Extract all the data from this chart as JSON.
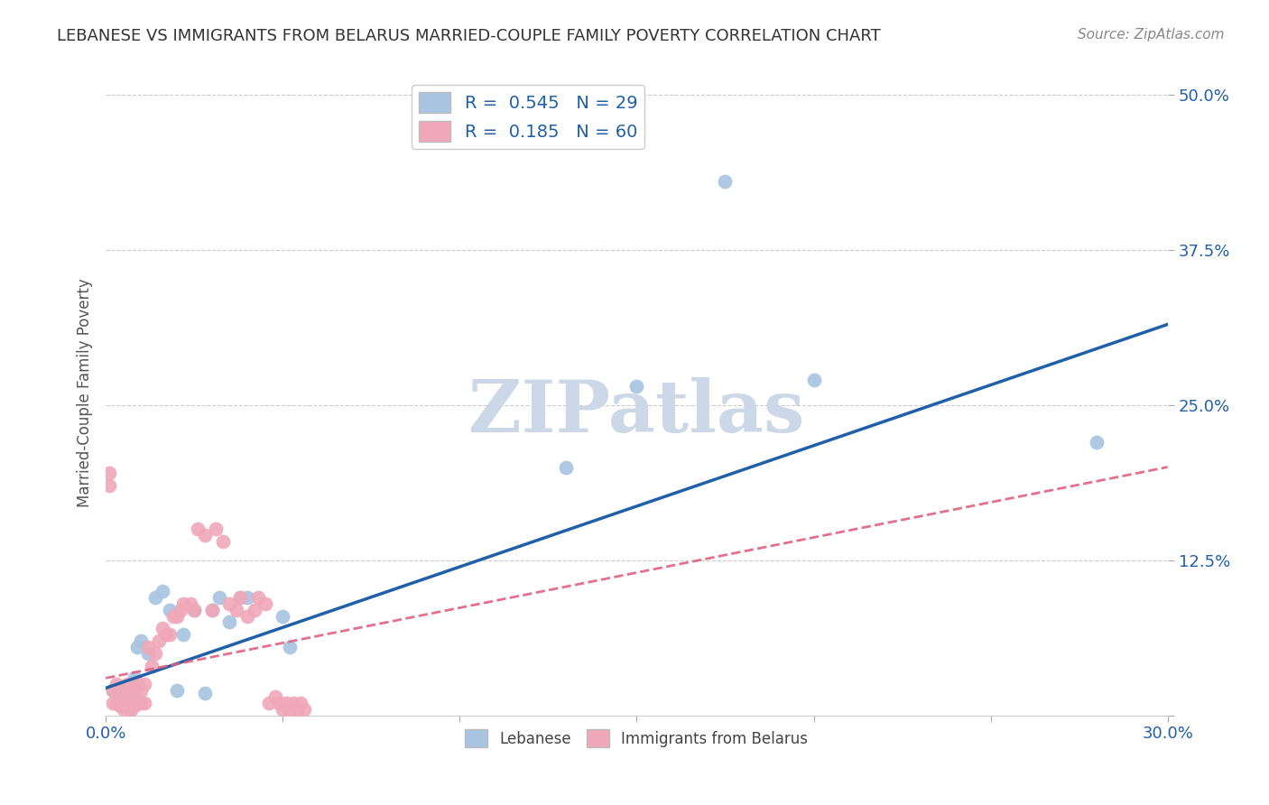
{
  "title": "LEBANESE VS IMMIGRANTS FROM BELARUS MARRIED-COUPLE FAMILY POVERTY CORRELATION CHART",
  "source": "Source: ZipAtlas.com",
  "ylabel": "Married-Couple Family Poverty",
  "xmin": 0.0,
  "xmax": 0.3,
  "ymin": 0.0,
  "ymax": 0.52,
  "xticks": [
    0.0,
    0.05,
    0.1,
    0.15,
    0.2,
    0.25,
    0.3
  ],
  "xticklabels": [
    "0.0%",
    "",
    "",
    "",
    "",
    "",
    "30.0%"
  ],
  "yticks": [
    0.0,
    0.125,
    0.25,
    0.375,
    0.5
  ],
  "yticklabels": [
    "",
    "12.5%",
    "25.0%",
    "37.5%",
    "50.0%"
  ],
  "blue_R": 0.545,
  "blue_N": 29,
  "pink_R": 0.185,
  "pink_N": 60,
  "blue_color": "#a8c4e0",
  "blue_line_color": "#2060a8",
  "pink_color": "#f0a8b8",
  "pink_line_color": "#e06080",
  "watermark": "ZIPatlas",
  "watermark_color": "#ccd8e8",
  "blue_line_x": [
    0.0,
    0.3
  ],
  "blue_line_y": [
    0.022,
    0.315
  ],
  "pink_line_x": [
    0.0,
    0.3
  ],
  "pink_line_y": [
    0.03,
    0.2
  ],
  "blue_points_x": [
    0.002,
    0.003,
    0.004,
    0.005,
    0.006,
    0.007,
    0.008,
    0.009,
    0.01,
    0.012,
    0.014,
    0.016,
    0.018,
    0.02,
    0.022,
    0.025,
    0.028,
    0.03,
    0.032,
    0.035,
    0.038,
    0.04,
    0.05,
    0.052,
    0.13,
    0.15,
    0.175,
    0.2,
    0.28
  ],
  "blue_points_y": [
    0.02,
    0.01,
    0.02,
    0.015,
    0.008,
    0.005,
    0.03,
    0.055,
    0.06,
    0.05,
    0.095,
    0.1,
    0.085,
    0.02,
    0.065,
    0.085,
    0.018,
    0.085,
    0.095,
    0.075,
    0.095,
    0.095,
    0.08,
    0.055,
    0.2,
    0.265,
    0.43,
    0.27,
    0.22
  ],
  "pink_points_x": [
    0.001,
    0.001,
    0.002,
    0.002,
    0.003,
    0.003,
    0.004,
    0.004,
    0.004,
    0.005,
    0.005,
    0.005,
    0.006,
    0.006,
    0.007,
    0.007,
    0.007,
    0.008,
    0.008,
    0.009,
    0.009,
    0.01,
    0.01,
    0.011,
    0.011,
    0.012,
    0.013,
    0.014,
    0.015,
    0.016,
    0.017,
    0.018,
    0.019,
    0.02,
    0.021,
    0.022,
    0.024,
    0.025,
    0.026,
    0.028,
    0.03,
    0.031,
    0.033,
    0.035,
    0.037,
    0.038,
    0.04,
    0.042,
    0.043,
    0.045,
    0.046,
    0.048,
    0.049,
    0.05,
    0.051,
    0.052,
    0.053,
    0.054,
    0.055,
    0.056
  ],
  "pink_points_y": [
    0.185,
    0.195,
    0.02,
    0.01,
    0.025,
    0.01,
    0.02,
    0.015,
    0.008,
    0.02,
    0.01,
    0.005,
    0.025,
    0.01,
    0.02,
    0.01,
    0.005,
    0.015,
    0.008,
    0.025,
    0.01,
    0.02,
    0.01,
    0.025,
    0.01,
    0.055,
    0.04,
    0.05,
    0.06,
    0.07,
    0.065,
    0.065,
    0.08,
    0.08,
    0.085,
    0.09,
    0.09,
    0.085,
    0.15,
    0.145,
    0.085,
    0.15,
    0.14,
    0.09,
    0.085,
    0.095,
    0.08,
    0.085,
    0.095,
    0.09,
    0.01,
    0.015,
    0.01,
    0.005,
    0.01,
    0.005,
    0.01,
    0.005,
    0.01,
    0.005
  ]
}
